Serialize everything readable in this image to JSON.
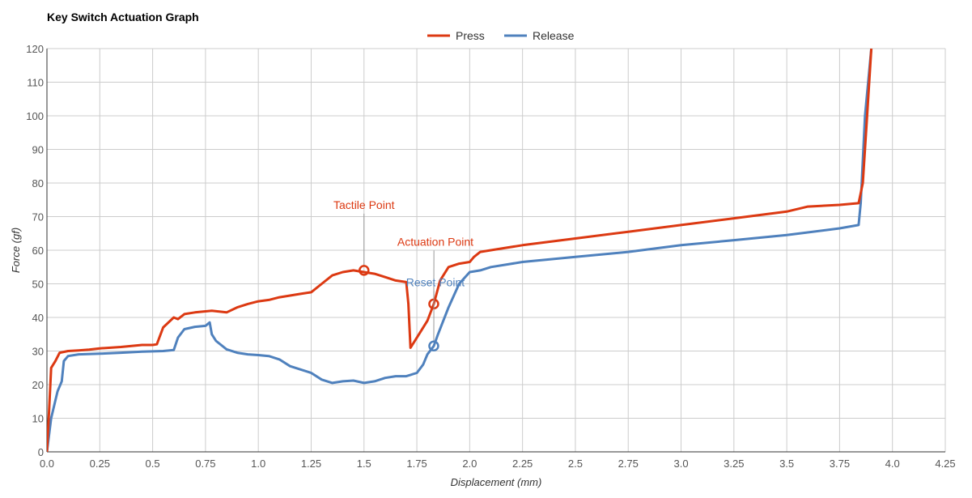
{
  "chart_data": {
    "type": "line",
    "title": "Key Switch Actuation Graph",
    "xlabel": "Displacement (mm)",
    "ylabel": "Force (gf)",
    "xlim": [
      0,
      4.25
    ],
    "ylim": [
      0,
      120
    ],
    "x_ticks": [
      "0.0",
      "0.25",
      "0.5",
      "0.75",
      "1.0",
      "1.25",
      "1.5",
      "1.75",
      "2.0",
      "2.25",
      "2.5",
      "2.75",
      "3.0",
      "3.25",
      "3.5",
      "3.75",
      "4.0",
      "4.25"
    ],
    "y_ticks": [
      "0",
      "10",
      "20",
      "30",
      "40",
      "50",
      "60",
      "70",
      "80",
      "90",
      "100",
      "110",
      "120"
    ],
    "grid": true,
    "legend_position": "top-center",
    "series": [
      {
        "name": "Press",
        "color": "#dc3912",
        "points": [
          [
            0.0,
            0
          ],
          [
            0.01,
            12
          ],
          [
            0.02,
            25
          ],
          [
            0.04,
            27
          ],
          [
            0.06,
            29.5
          ],
          [
            0.1,
            30
          ],
          [
            0.15,
            30.2
          ],
          [
            0.2,
            30.4
          ],
          [
            0.25,
            30.8
          ],
          [
            0.3,
            31
          ],
          [
            0.35,
            31.2
          ],
          [
            0.4,
            31.5
          ],
          [
            0.45,
            31.8
          ],
          [
            0.5,
            31.8
          ],
          [
            0.52,
            32
          ],
          [
            0.55,
            37
          ],
          [
            0.6,
            40
          ],
          [
            0.62,
            39.5
          ],
          [
            0.65,
            41
          ],
          [
            0.7,
            41.5
          ],
          [
            0.75,
            41.8
          ],
          [
            0.78,
            42
          ],
          [
            0.85,
            41.5
          ],
          [
            0.9,
            43
          ],
          [
            0.95,
            44
          ],
          [
            1.0,
            44.8
          ],
          [
            1.05,
            45.2
          ],
          [
            1.1,
            46
          ],
          [
            1.15,
            46.5
          ],
          [
            1.2,
            47
          ],
          [
            1.25,
            47.5
          ],
          [
            1.3,
            50
          ],
          [
            1.35,
            52.5
          ],
          [
            1.4,
            53.5
          ],
          [
            1.45,
            54
          ],
          [
            1.5,
            53.5
          ],
          [
            1.55,
            53
          ],
          [
            1.6,
            52
          ],
          [
            1.65,
            51
          ],
          [
            1.7,
            50.5
          ],
          [
            1.71,
            44
          ],
          [
            1.72,
            31
          ],
          [
            1.75,
            34
          ],
          [
            1.8,
            39
          ],
          [
            1.83,
            44
          ],
          [
            1.86,
            51
          ],
          [
            1.9,
            55
          ],
          [
            1.95,
            56
          ],
          [
            2.0,
            56.5
          ],
          [
            2.02,
            58
          ],
          [
            2.05,
            59.5
          ],
          [
            2.1,
            60
          ],
          [
            2.25,
            61.5
          ],
          [
            2.5,
            63.5
          ],
          [
            2.75,
            65.5
          ],
          [
            3.0,
            67.5
          ],
          [
            3.25,
            69.5
          ],
          [
            3.5,
            71.5
          ],
          [
            3.6,
            73
          ],
          [
            3.75,
            73.5
          ],
          [
            3.84,
            74
          ],
          [
            3.86,
            80
          ],
          [
            3.88,
            100
          ],
          [
            3.9,
            120
          ]
        ]
      },
      {
        "name": "Release",
        "color": "#4f81bd",
        "points": [
          [
            0.0,
            0
          ],
          [
            0.02,
            10
          ],
          [
            0.05,
            18
          ],
          [
            0.07,
            21
          ],
          [
            0.08,
            27
          ],
          [
            0.1,
            28.5
          ],
          [
            0.15,
            29
          ],
          [
            0.25,
            29.2
          ],
          [
            0.35,
            29.5
          ],
          [
            0.45,
            29.8
          ],
          [
            0.55,
            30
          ],
          [
            0.6,
            30.3
          ],
          [
            0.62,
            34
          ],
          [
            0.65,
            36.5
          ],
          [
            0.7,
            37.2
          ],
          [
            0.75,
            37.5
          ],
          [
            0.77,
            38.5
          ],
          [
            0.78,
            35
          ],
          [
            0.8,
            33
          ],
          [
            0.85,
            30.5
          ],
          [
            0.9,
            29.5
          ],
          [
            0.95,
            29
          ],
          [
            1.0,
            28.8
          ],
          [
            1.05,
            28.5
          ],
          [
            1.1,
            27.5
          ],
          [
            1.15,
            25.5
          ],
          [
            1.2,
            24.5
          ],
          [
            1.25,
            23.5
          ],
          [
            1.3,
            21.5
          ],
          [
            1.35,
            20.5
          ],
          [
            1.4,
            21
          ],
          [
            1.45,
            21.2
          ],
          [
            1.5,
            20.5
          ],
          [
            1.55,
            21
          ],
          [
            1.6,
            22
          ],
          [
            1.65,
            22.5
          ],
          [
            1.7,
            22.5
          ],
          [
            1.75,
            23.5
          ],
          [
            1.78,
            26
          ],
          [
            1.8,
            29
          ],
          [
            1.83,
            31.5
          ],
          [
            1.85,
            35
          ],
          [
            1.9,
            43
          ],
          [
            1.95,
            50
          ],
          [
            2.0,
            53.5
          ],
          [
            2.05,
            54
          ],
          [
            2.1,
            55
          ],
          [
            2.25,
            56.5
          ],
          [
            2.5,
            58
          ],
          [
            2.75,
            59.5
          ],
          [
            3.0,
            61.5
          ],
          [
            3.25,
            63
          ],
          [
            3.5,
            64.5
          ],
          [
            3.75,
            66.5
          ],
          [
            3.84,
            67.5
          ],
          [
            3.85,
            74
          ],
          [
            3.87,
            100
          ],
          [
            3.9,
            120
          ]
        ]
      }
    ],
    "annotations": [
      {
        "label": "Tactile Point",
        "series": "Press",
        "x": 1.5,
        "y": 54,
        "color": "#dc3912"
      },
      {
        "label": "Actuation Point",
        "series": "Press",
        "x": 1.83,
        "y": 44,
        "color": "#dc3912"
      },
      {
        "label": "Reset Point",
        "series": "Release",
        "x": 1.83,
        "y": 31.5,
        "color": "#4f81bd"
      }
    ]
  }
}
